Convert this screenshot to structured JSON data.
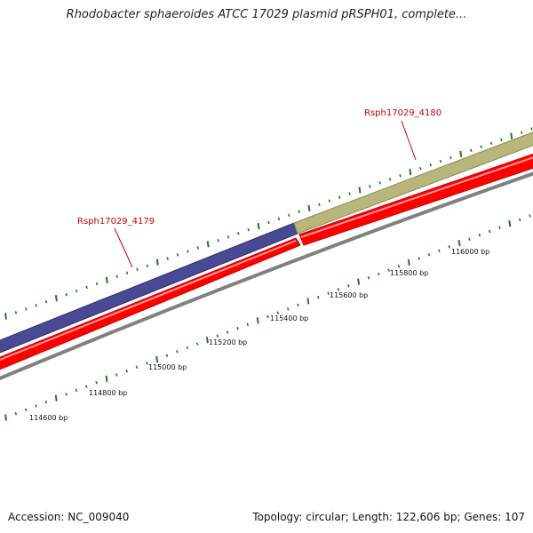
{
  "title": "Rhodobacter sphaeroides ATCC 17029 plasmid pRSPH01, complete...",
  "footer": {
    "accession": "Accession: NC_009040",
    "summary": "Topology: circular; Length: 122,606 bp; Genes: 107"
  },
  "genes": [
    {
      "name": "Rsph17029_4179",
      "color": "#4a4a94"
    },
    {
      "name": "Rsph17029_4180",
      "color": "#b8b67a"
    }
  ],
  "colors": {
    "cds": "#ff0000",
    "backbone": "#808080",
    "ticks": "#1e7a1e",
    "gene_label": "#cc0000"
  },
  "scale_labels": [
    "114600 bp",
    "114800 bp",
    "115000 bp",
    "115200 bp",
    "115400 bp",
    "115600 bp",
    "115800 bp",
    "116000 bp"
  ]
}
